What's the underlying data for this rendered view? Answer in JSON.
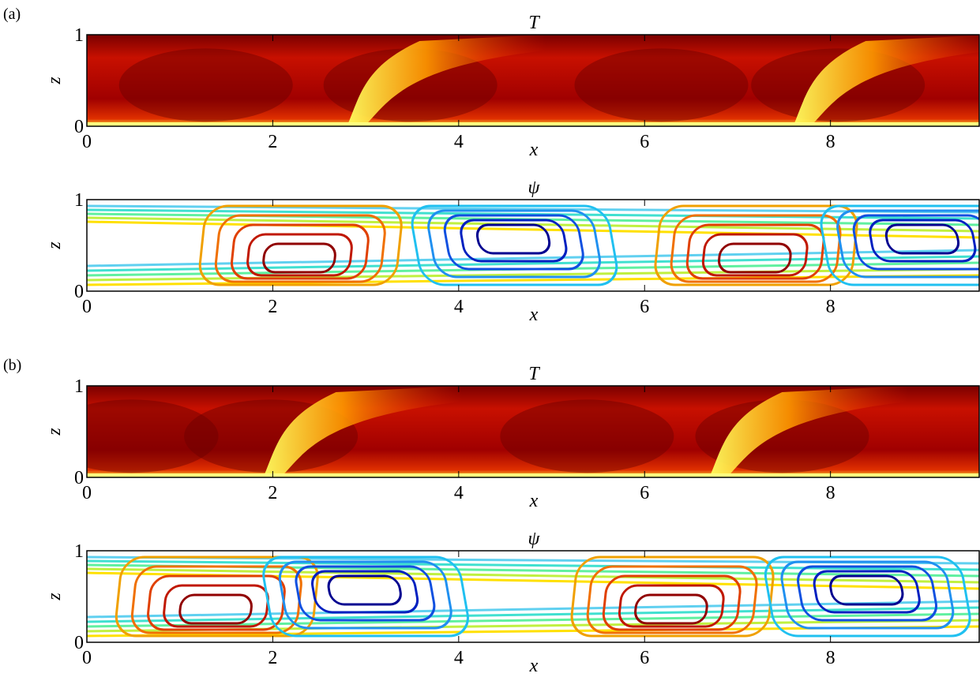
{
  "chart_data": [
    {
      "type": "contourf",
      "panel_label": "(a)",
      "title": "T",
      "xlabel": "x",
      "ylabel": "z",
      "xlim": [
        0,
        9.6
      ],
      "ylim": [
        0,
        1
      ],
      "xticks": [
        0,
        2,
        4,
        6,
        8
      ],
      "yticks": [
        0,
        1
      ]
    },
    {
      "type": "contour",
      "title": "ψ",
      "xlabel": "x",
      "ylabel": "z",
      "xlim": [
        0,
        9.6
      ],
      "ylim": [
        0,
        1
      ],
      "xticks": [
        0,
        2,
        4,
        6,
        8
      ],
      "yticks": [
        0,
        1
      ]
    },
    {
      "type": "contourf",
      "panel_label": "(b)",
      "title": "T",
      "xlabel": "x",
      "ylabel": "z",
      "xlim": [
        0,
        9.6
      ],
      "ylim": [
        0,
        1
      ],
      "xticks": [
        0,
        2,
        4,
        6,
        8
      ],
      "yticks": [
        0,
        1
      ]
    },
    {
      "type": "contour",
      "title": "ψ",
      "xlabel": "x",
      "ylabel": "z",
      "xlim": [
        0,
        9.6
      ],
      "ylim": [
        0,
        1
      ],
      "xticks": [
        0,
        2,
        4,
        6,
        8
      ],
      "yticks": [
        0,
        1
      ]
    }
  ]
}
